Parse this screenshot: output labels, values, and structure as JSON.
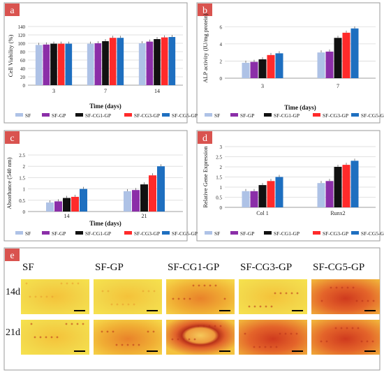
{
  "colors": {
    "panel_label_bg": "#d9534f",
    "series": [
      "#aec2e6",
      "#8b2ea8",
      "#111111",
      "#ff2a2a",
      "#1e6fc0"
    ]
  },
  "panels": {
    "a": {
      "label": "a"
    },
    "b": {
      "label": "b"
    },
    "c": {
      "label": "c"
    },
    "d": {
      "label": "d"
    },
    "e": {
      "label": "e"
    }
  },
  "legend": [
    "SF",
    "SF-GP",
    "SF-CG1-GP",
    "SF-CG3-GP",
    "SF-CG5-GP"
  ],
  "chart_data": [
    {
      "panel": "a",
      "type": "bar",
      "ylabel": "Cell Viability (%)",
      "xlabel": "Time (days)",
      "ylim": [
        0,
        140
      ],
      "yticks": [
        0,
        20,
        40,
        60,
        80,
        100,
        120,
        140
      ],
      "categories": [
        "3",
        "7",
        "14"
      ],
      "series": [
        {
          "name": "SF",
          "values": [
            96,
            99,
            100
          ]
        },
        {
          "name": "SF-GP",
          "values": [
            97,
            100,
            104
          ]
        },
        {
          "name": "SF-CG1-GP",
          "values": [
            99,
            105,
            110
          ]
        },
        {
          "name": "SF-CG3-GP",
          "values": [
            99,
            113,
            114
          ]
        },
        {
          "name": "SF-CG5-GP",
          "values": [
            99,
            113,
            115
          ]
        }
      ],
      "legend": "bottom",
      "grid": true
    },
    {
      "panel": "b",
      "type": "bar",
      "ylabel": "ALP activity (IU/mg protein)",
      "xlabel": "Time (days)",
      "ylim": [
        0,
        7
      ],
      "yticks": [
        0,
        2,
        4,
        6
      ],
      "categories": [
        "3",
        "7"
      ],
      "series": [
        {
          "name": "SF",
          "values": [
            1.8,
            3.0
          ]
        },
        {
          "name": "SF-GP",
          "values": [
            1.9,
            3.1
          ]
        },
        {
          "name": "SF-CG1-GP",
          "values": [
            2.2,
            4.7
          ]
        },
        {
          "name": "SF-CG3-GP",
          "values": [
            2.7,
            5.3
          ]
        },
        {
          "name": "SF-CG5-GP",
          "values": [
            2.9,
            5.8
          ]
        }
      ],
      "legend": "bottom",
      "grid": true
    },
    {
      "panel": "c",
      "type": "bar",
      "ylabel": "Absorbance (540 nm)",
      "xlabel": "Time (days)",
      "ylim": [
        0,
        2.5
      ],
      "yticks": [
        0,
        0.5,
        1,
        1.5,
        2,
        2.5
      ],
      "categories": [
        "14",
        "21"
      ],
      "series": [
        {
          "name": "SF",
          "values": [
            0.4,
            0.9
          ]
        },
        {
          "name": "SF-GP",
          "values": [
            0.45,
            0.95
          ]
        },
        {
          "name": "SF-CG1-GP",
          "values": [
            0.6,
            1.2
          ]
        },
        {
          "name": "SF-CG3-GP",
          "values": [
            0.65,
            1.6
          ]
        },
        {
          "name": "SF-CG5-GP",
          "values": [
            1.0,
            2.0
          ]
        }
      ],
      "legend": "bottom",
      "grid": true
    },
    {
      "panel": "d",
      "type": "bar",
      "ylabel": "Relative Gene Expression",
      "xlabel": "",
      "ylim": [
        0,
        3
      ],
      "yticks": [
        0,
        0.5,
        1,
        1.5,
        2,
        2.5,
        3
      ],
      "categories": [
        "Col 1",
        "Runx2"
      ],
      "series": [
        {
          "name": "SF",
          "values": [
            0.8,
            1.2
          ]
        },
        {
          "name": "SF-GP",
          "values": [
            0.8,
            1.3
          ]
        },
        {
          "name": "SF-CG1-GP",
          "values": [
            1.1,
            2.0
          ]
        },
        {
          "name": "SF-CG3-GP",
          "values": [
            1.3,
            2.1
          ]
        },
        {
          "name": "SF-CG5-GP",
          "values": [
            1.5,
            2.3
          ]
        }
      ],
      "legend": "bottom",
      "grid": true
    }
  ],
  "micro": {
    "columns": [
      "SF",
      "SF-GP",
      "SF-CG1-GP",
      "SF-CG3-GP",
      "SF-CG5-GP"
    ],
    "rows": [
      "14d",
      "21d"
    ]
  }
}
